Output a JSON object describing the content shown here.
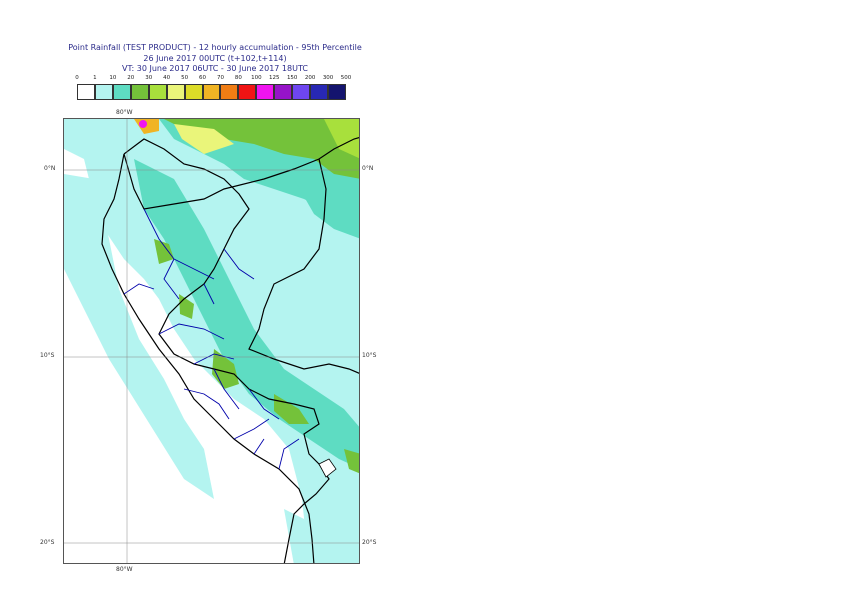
{
  "header": {
    "line1": "Point Rainfall (TEST PRODUCT) - 12 hourly accumulation - 95th Percentile",
    "line2": "26 June 2017 00UTC (t+102,t+114)",
    "line3": "VT: 30 June 2017 06UTC - 30 June 2017 18UTC"
  },
  "legend": {
    "thresholds": [
      "0",
      "1",
      "10",
      "20",
      "30",
      "40",
      "50",
      "60",
      "70",
      "80",
      "100",
      "125",
      "150",
      "200",
      "300",
      "500"
    ],
    "colors": [
      "#ffffff",
      "#b4f4f0",
      "#5edcc2",
      "#74c23a",
      "#a8e03c",
      "#eaf57a",
      "#dcdc28",
      "#f0b424",
      "#f07d14",
      "#f01414",
      "#f014f0",
      "#9614c8",
      "#6e46f0",
      "#2828b4",
      "#14146e"
    ]
  },
  "axes": {
    "top_lon": "80°W",
    "bottom_lon": "80°W",
    "lat_labels": [
      "0°N",
      "10°S",
      "20°S"
    ]
  },
  "colors": {
    "light_cyan": "#b4f4f0",
    "mid_cyan": "#5edcc2",
    "green": "#74c23a",
    "light_green": "#a8e03c",
    "yellow": "#eaf57a",
    "orange": "#f0b424",
    "magenta": "#f014f0",
    "border_black": "#000000",
    "region_blue": "#0000aa"
  }
}
